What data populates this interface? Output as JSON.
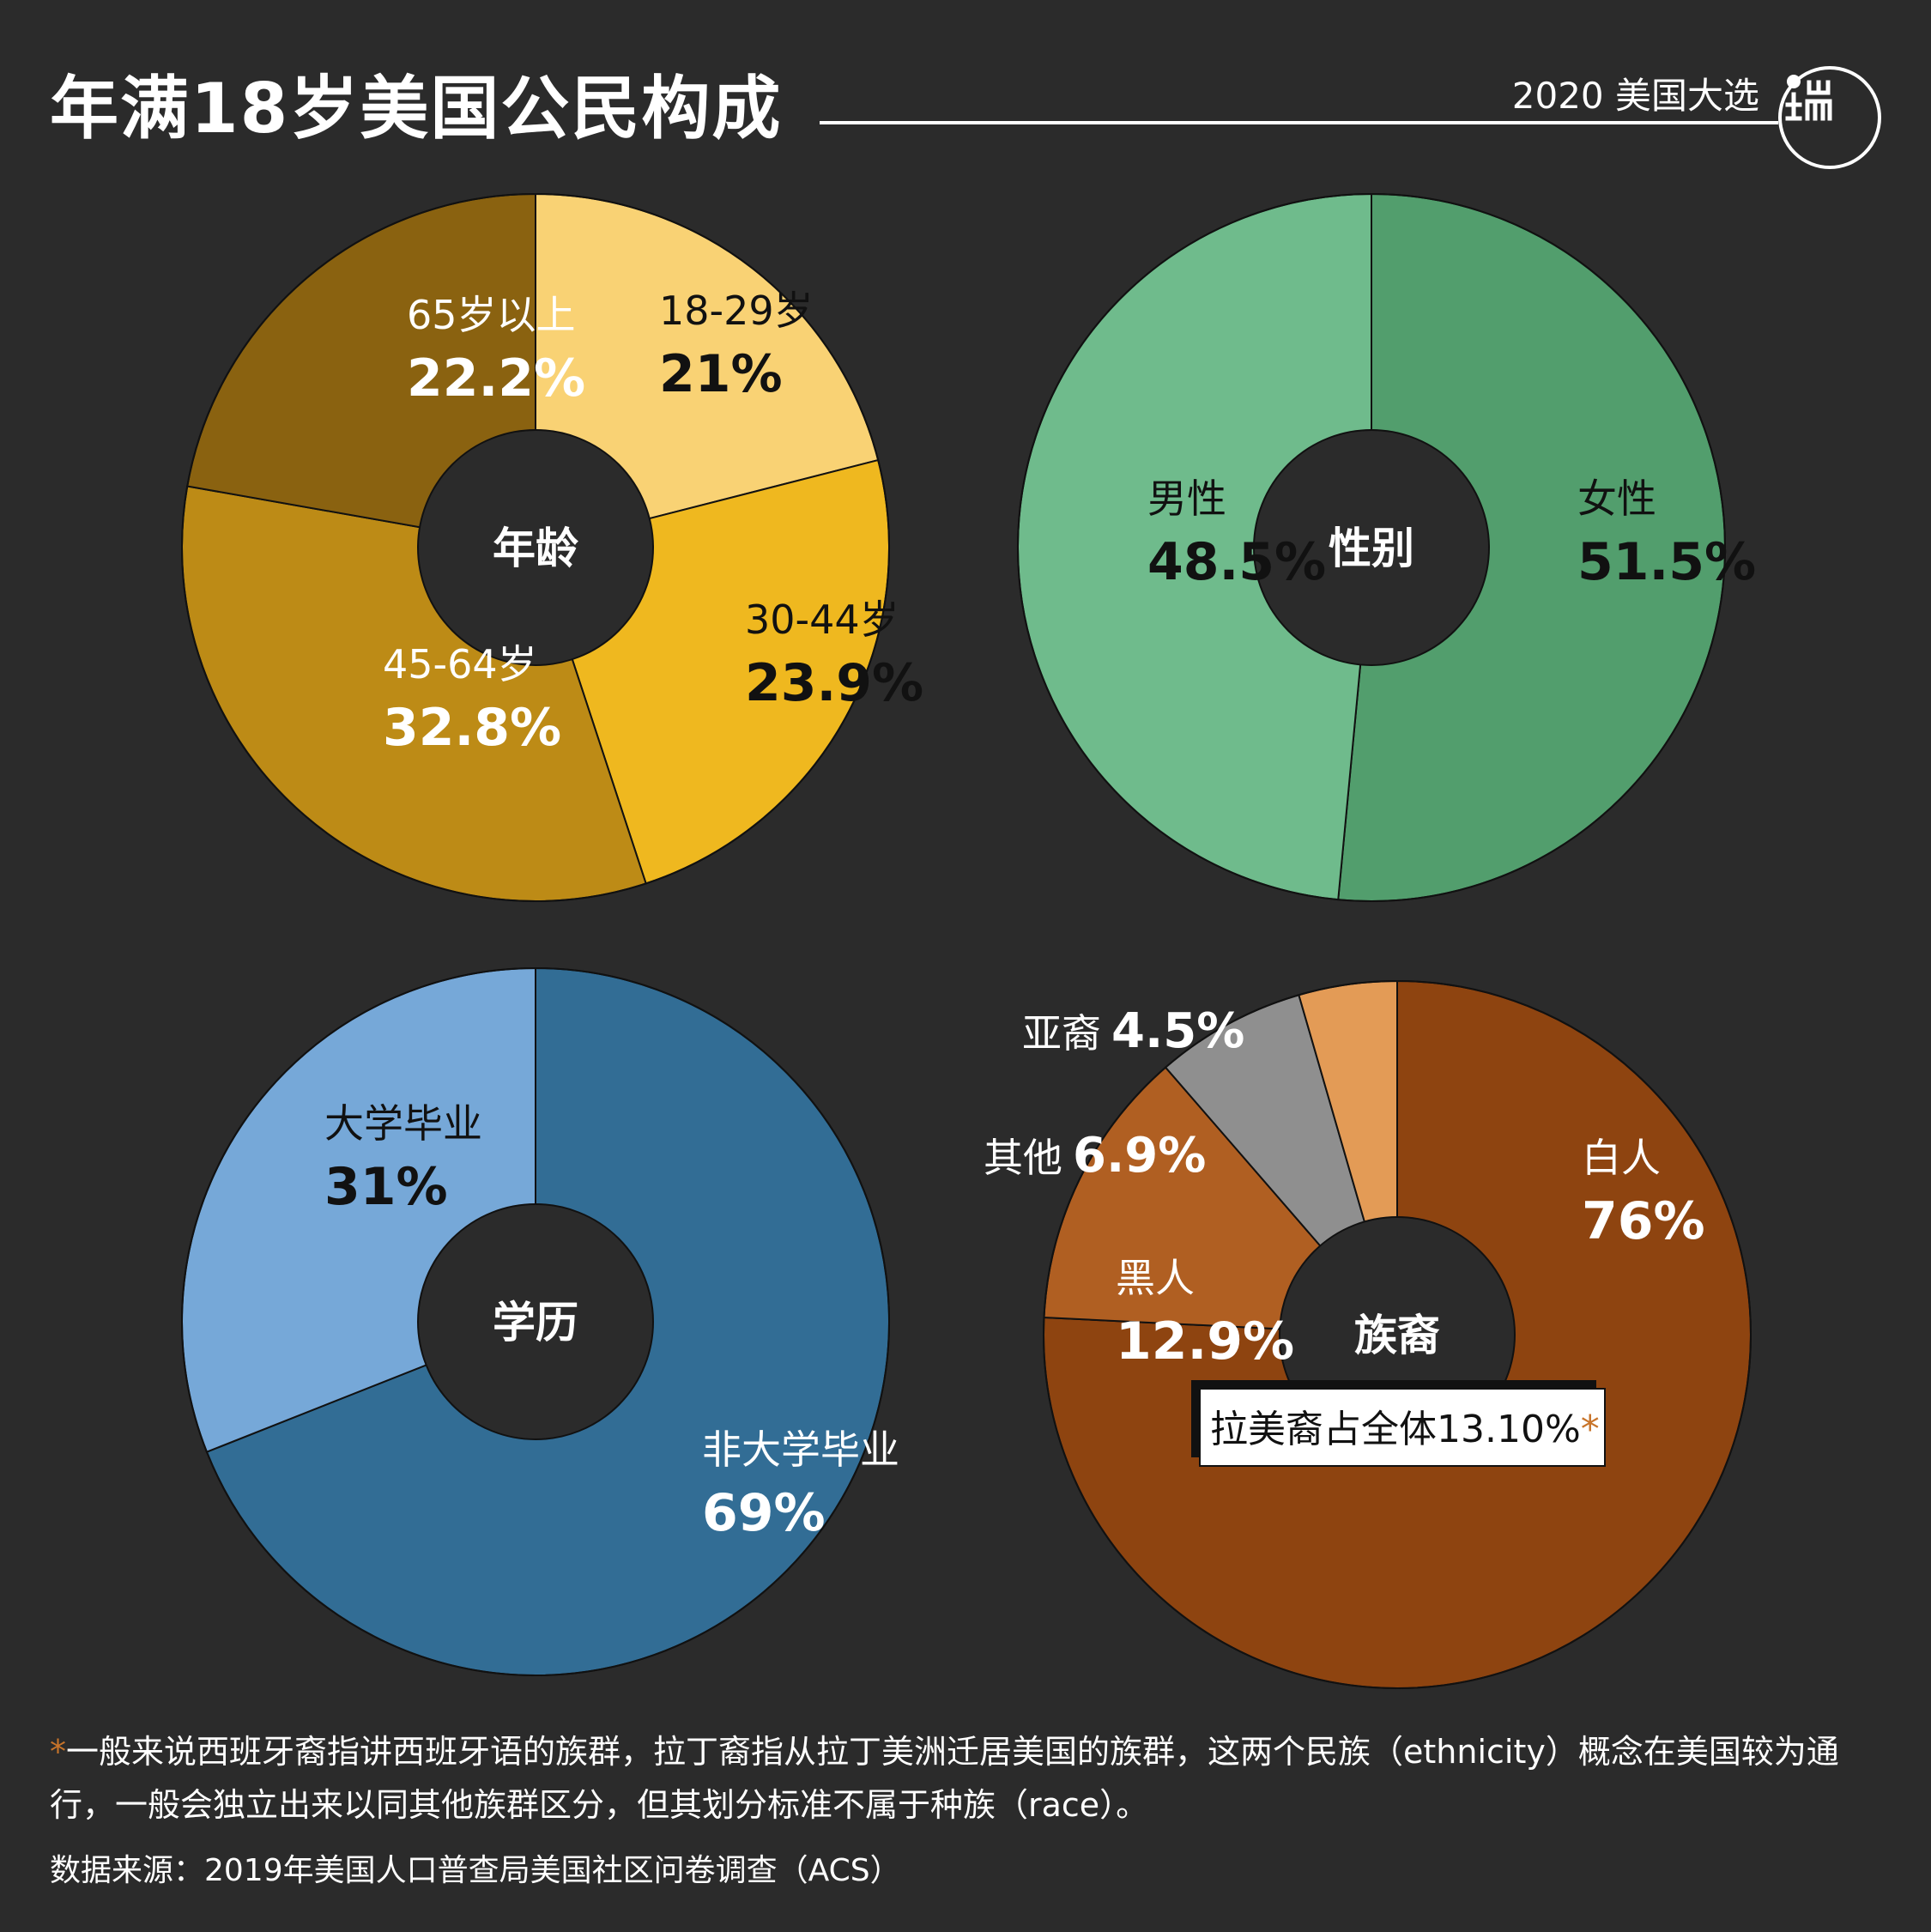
{
  "header": {
    "title": "年满18岁美国公民构成",
    "tagline": "2020 美国大选"
  },
  "colors": {
    "background": "#2b2b2b",
    "text_light": "#ffffff",
    "text_dark": "#111111"
  },
  "chart_data": [
    {
      "type": "pie",
      "center_label": "年龄",
      "slices": [
        {
          "label": "18-29岁",
          "value": 21,
          "value_label": "21%",
          "color": "#f9d274",
          "text": "dark"
        },
        {
          "label": "30-44岁",
          "value": 23.9,
          "value_label": "23.9%",
          "color": "#efb81f",
          "text": "dark"
        },
        {
          "label": "45-64岁",
          "value": 32.8,
          "value_label": "32.8%",
          "color": "#bd8b16",
          "text": "light"
        },
        {
          "label": "65岁以上",
          "value": 22.2,
          "value_label": "22.2%",
          "color": "#8a6210",
          "text": "light"
        }
      ]
    },
    {
      "type": "pie",
      "center_label": "性别",
      "slices": [
        {
          "label": "女性",
          "value": 51.5,
          "value_label": "51.5%",
          "color": "#529e6d",
          "text": "dark"
        },
        {
          "label": "男性",
          "value": 48.5,
          "value_label": "48.5%",
          "color": "#6fbb8c",
          "text": "dark"
        }
      ]
    },
    {
      "type": "pie",
      "center_label": "学历",
      "slices": [
        {
          "label": "非大学毕业",
          "value": 69,
          "value_label": "69%",
          "color": "#326d95",
          "text": "light"
        },
        {
          "label": "大学毕业",
          "value": 31,
          "value_label": "31%",
          "color": "#76a8d8",
          "text": "dark"
        }
      ]
    },
    {
      "type": "pie",
      "center_label": "族裔",
      "slices": [
        {
          "label": "白人",
          "value": 76,
          "value_label": "76%",
          "color": "#8e4410",
          "text": "light"
        },
        {
          "label": "黑人",
          "value": 12.9,
          "value_label": "12.9%",
          "color": "#b05f22",
          "text": "light"
        },
        {
          "label": "其他",
          "value": 6.9,
          "value_label": "6.9%",
          "color": "#8f8f8f",
          "text": "light"
        },
        {
          "label": "亚裔",
          "value": 4.5,
          "value_label": "4.5%",
          "color": "#e39b56",
          "text": "light"
        }
      ],
      "annotation": {
        "text": "拉美裔占全体13.10%",
        "marker": "*"
      }
    }
  ],
  "footnote": {
    "marker": "*",
    "text": "一般来说西班牙裔指讲西班牙语的族群，拉丁裔指从拉丁美洲迁居美国的族群，这两个民族（ethnicity）概念在美国较为通行，一般会独立出来以同其他族群区分，但其划分标准不属于种族（race）。"
  },
  "source": "数据来源：2019年美国人口普查局美国社区问卷调查（ACS）"
}
